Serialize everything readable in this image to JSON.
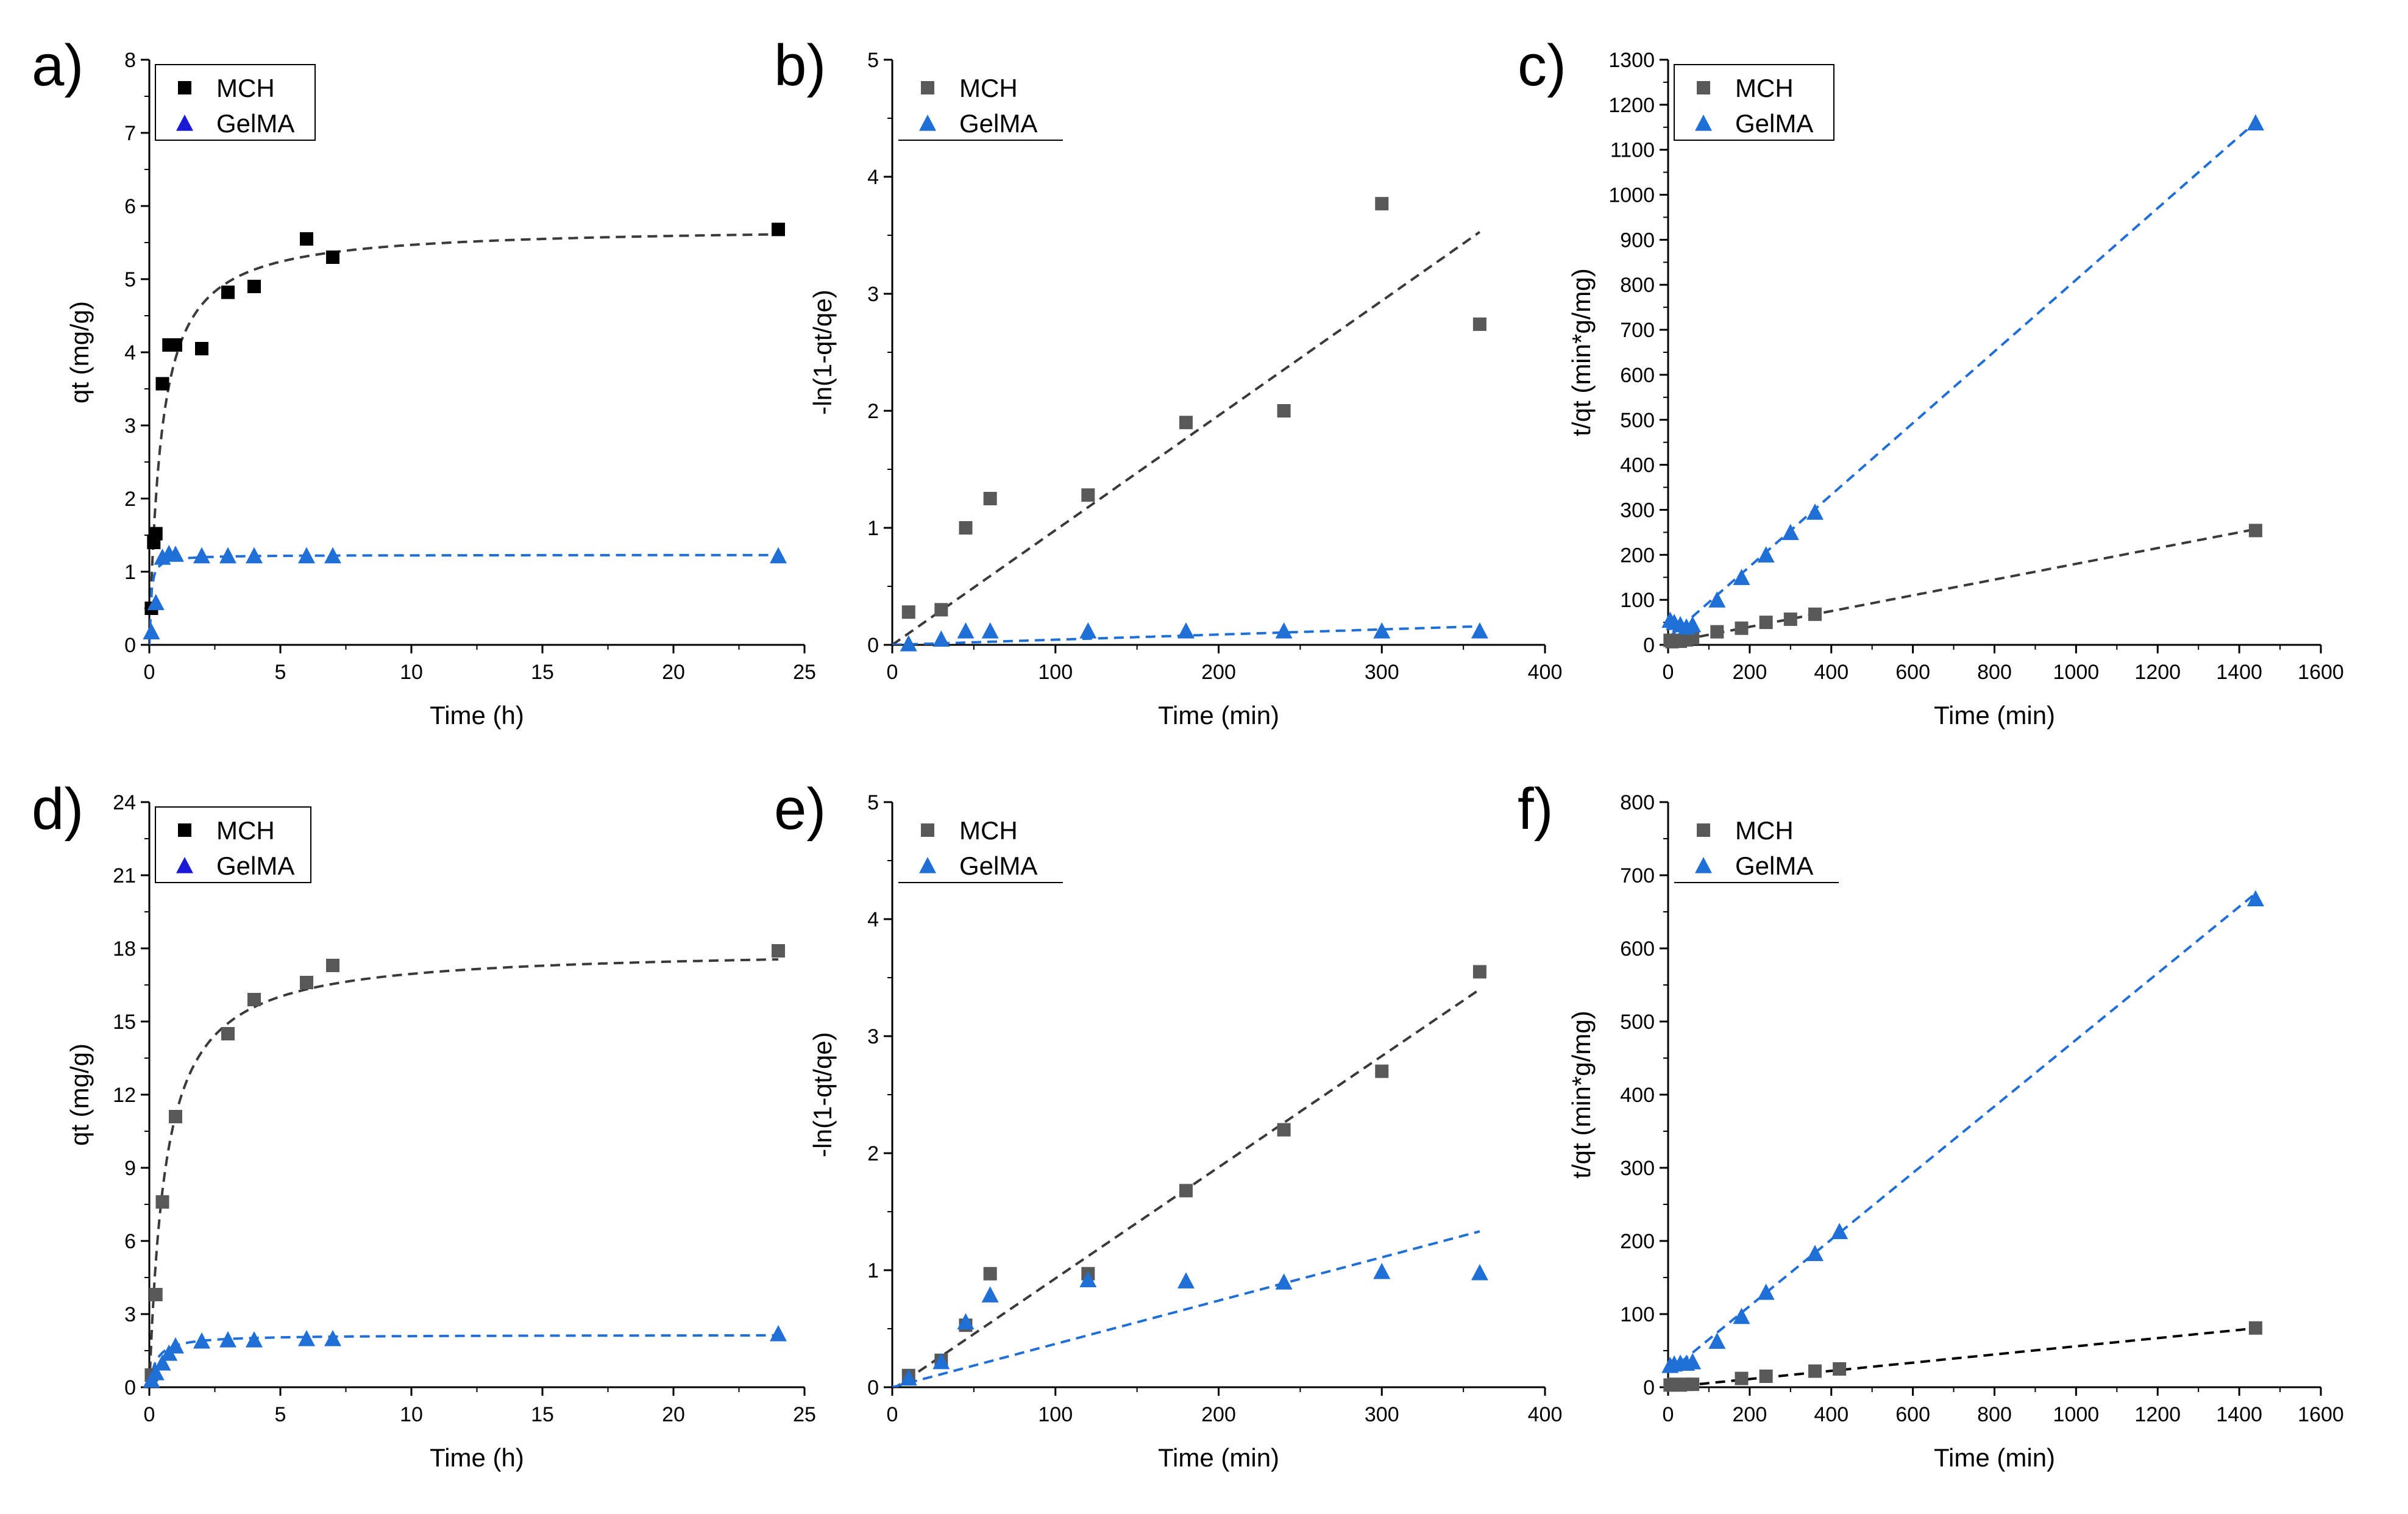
{
  "figure_title": "",
  "colors": {
    "mch_panel_ad": "#000000",
    "mch_panel_other": "#595959",
    "gelma_marker": "#1f6fd6",
    "gelma_marker_ad_legend": "#1a1ad6",
    "mch_fit": "#3a3a3a",
    "gelma_fit": "#1f6fd6",
    "axis": "#000000"
  },
  "chart_data": [
    {
      "panel": "a)",
      "type": "scatter",
      "xlabel": "Time (h)",
      "ylabel": "qt (mg/g)",
      "xlim": [
        0,
        25
      ],
      "ylim": [
        0,
        8
      ],
      "xticks": [
        0,
        5,
        10,
        15,
        20,
        25
      ],
      "yticks": [
        0,
        1,
        2,
        3,
        4,
        5,
        6,
        7,
        8
      ],
      "legend": "top-left",
      "series": [
        {
          "name": "MCH",
          "marker": "square",
          "color": "#000000",
          "x": [
            0.08,
            0.17,
            0.25,
            0.5,
            0.75,
            1,
            2,
            3,
            4,
            6,
            7,
            24
          ],
          "y": [
            0.5,
            1.4,
            1.52,
            3.57,
            4.1,
            4.1,
            4.05,
            4.82,
            4.9,
            5.55,
            5.3,
            5.68
          ],
          "fit": {
            "model": "pso",
            "qe": 5.72,
            "k": 0.38,
            "x0": 0,
            "x1": 24,
            "color": "#3a3a3a"
          }
        },
        {
          "name": "GelMA",
          "marker": "triangle",
          "color": "#1f6fd6",
          "legend_color": "#1a1ad6",
          "x": [
            0.08,
            0.25,
            0.5,
            0.75,
            1,
            2,
            3,
            4,
            6,
            7,
            24
          ],
          "y": [
            0.18,
            0.58,
            1.2,
            1.25,
            1.24,
            1.22,
            1.22,
            1.22,
            1.22,
            1.22,
            1.22
          ],
          "fit": {
            "model": "pso",
            "qe": 1.23,
            "k": 15,
            "x0": 0,
            "x1": 24,
            "color": "#1f6fd6"
          }
        }
      ]
    },
    {
      "panel": "b)",
      "type": "scatter",
      "xlabel": "Time (min)",
      "ylabel": "-ln(1-qt/qe)",
      "xlim": [
        0,
        400
      ],
      "ylim": [
        0,
        5
      ],
      "xticks": [
        0,
        100,
        200,
        300,
        400
      ],
      "yticks": [
        0,
        1,
        2,
        3,
        4,
        5
      ],
      "legend": "top-left",
      "series": [
        {
          "name": "MCH",
          "marker": "square",
          "color": "#595959",
          "x": [
            10,
            30,
            45,
            60,
            120,
            180,
            240,
            300,
            360
          ],
          "y": [
            0.28,
            0.3,
            1.0,
            1.25,
            1.28,
            1.9,
            2.0,
            3.77,
            2.74
          ],
          "fit": {
            "model": "linear",
            "a": 0.0,
            "b": 0.0098,
            "x0": 0,
            "x1": 360,
            "color": "#3a3a3a"
          }
        },
        {
          "name": "GelMA",
          "marker": "triangle",
          "color": "#1f6fd6",
          "x": [
            10,
            30,
            45,
            60,
            120,
            180,
            240,
            300,
            360
          ],
          "y": [
            0.01,
            0.05,
            0.12,
            0.12,
            0.12,
            0.12,
            0.12,
            0.12,
            0.12
          ],
          "fit": {
            "model": "linear",
            "a": 0.0,
            "b": 0.00044,
            "x0": 0,
            "x1": 360,
            "color": "#1f6fd6"
          }
        }
      ]
    },
    {
      "panel": "c)",
      "type": "scatter",
      "xlabel": "Time (min)",
      "ylabel": "t/qt (min*g/mg)",
      "xlim": [
        0,
        1600
      ],
      "ylim": [
        0,
        1300
      ],
      "xticks": [
        0,
        200,
        400,
        600,
        800,
        1000,
        1200,
        1400,
        1600
      ],
      "yticks": [
        0,
        100,
        200,
        300,
        400,
        500,
        600,
        700,
        800,
        900,
        1000,
        1100,
        1200,
        1300
      ],
      "legend": "top-left",
      "series": [
        {
          "name": "MCH",
          "marker": "square",
          "color": "#595959",
          "x": [
            5,
            10,
            15,
            30,
            45,
            60,
            120,
            180,
            240,
            300,
            360,
            1440
          ],
          "y": [
            10,
            7,
            10,
            8,
            11,
            15,
            29,
            37,
            50,
            57,
            68,
            254
          ],
          "fit": {
            "model": "linear",
            "a": 5,
            "b": 0.175,
            "x0": 0,
            "x1": 1440,
            "color": "#3a3a3a"
          }
        },
        {
          "name": "GelMA",
          "marker": "triangle",
          "color": "#1f6fd6",
          "x": [
            5,
            15,
            30,
            45,
            60,
            120,
            180,
            240,
            300,
            360,
            1440
          ],
          "y": [
            55,
            50,
            45,
            40,
            45,
            100,
            150,
            200,
            250,
            295,
            1160
          ],
          "fit": {
            "model": "linear",
            "a": 15,
            "b": 0.796,
            "x0": 0,
            "x1": 1440,
            "color": "#1f6fd6"
          }
        }
      ]
    },
    {
      "panel": "d)",
      "type": "scatter",
      "xlabel": "Time (h)",
      "ylabel": "qt (mg/g)",
      "xlim": [
        0,
        25
      ],
      "ylim": [
        0,
        24
      ],
      "xticks": [
        0,
        5,
        10,
        15,
        20,
        25
      ],
      "yticks": [
        0,
        3,
        6,
        9,
        12,
        15,
        18,
        21,
        24
      ],
      "legend": "top-left",
      "series": [
        {
          "name": "MCH",
          "marker": "square",
          "color": "#595959",
          "legend_color": "#000000",
          "x": [
            0.08,
            0.25,
            0.5,
            1,
            3,
            4,
            6,
            7,
            24
          ],
          "y": [
            0.5,
            3.8,
            7.6,
            11.1,
            14.5,
            15.9,
            16.6,
            17.3,
            17.9
          ],
          "fit": {
            "model": "pso",
            "qe": 18.0,
            "k": 0.09,
            "x0": 0,
            "x1": 24,
            "color": "#3a3a3a"
          }
        },
        {
          "name": "GelMA",
          "marker": "triangle",
          "color": "#1f6fd6",
          "legend_color": "#1a1ad6",
          "x": [
            0.08,
            0.25,
            0.5,
            0.75,
            1,
            2,
            3,
            4,
            6,
            7,
            24
          ],
          "y": [
            0.3,
            0.6,
            1.0,
            1.4,
            1.7,
            1.9,
            1.95,
            1.95,
            2.0,
            2.0,
            2.2
          ],
          "fit": {
            "model": "pso",
            "qe": 2.15,
            "k": 1.8,
            "x0": 0,
            "x1": 24,
            "color": "#1f6fd6"
          }
        }
      ]
    },
    {
      "panel": "e)",
      "type": "scatter",
      "xlabel": "Time (min)",
      "ylabel": "-ln(1-qt/qe)",
      "xlim": [
        0,
        400
      ],
      "ylim": [
        0,
        5
      ],
      "xticks": [
        0,
        100,
        200,
        300,
        400
      ],
      "yticks": [
        0,
        1,
        2,
        3,
        4,
        5
      ],
      "legend": "top-left",
      "series": [
        {
          "name": "MCH",
          "marker": "square",
          "color": "#595959",
          "x": [
            10,
            30,
            45,
            60,
            120,
            180,
            240,
            300,
            360
          ],
          "y": [
            0.1,
            0.23,
            0.53,
            0.97,
            0.97,
            1.68,
            2.2,
            2.7,
            3.55
          ],
          "fit": {
            "model": "linear",
            "a": -0.02,
            "b": 0.0095,
            "x0": 0,
            "x1": 360,
            "color": "#3a3a3a"
          }
        },
        {
          "name": "GelMA",
          "marker": "triangle",
          "color": "#1f6fd6",
          "x": [
            10,
            30,
            45,
            60,
            120,
            180,
            240,
            300,
            360
          ],
          "y": [
            0.08,
            0.22,
            0.56,
            0.79,
            0.92,
            0.91,
            0.9,
            0.99,
            0.98
          ],
          "fit": {
            "model": "linear",
            "a": 0.0,
            "b": 0.0037,
            "x0": 0,
            "x1": 360,
            "color": "#1f6fd6"
          }
        }
      ]
    },
    {
      "panel": "f)",
      "type": "scatter",
      "xlabel": "Time (min)",
      "ylabel": "t/qt (min*g/mg)",
      "xlim": [
        0,
        1600
      ],
      "ylim": [
        0,
        800
      ],
      "xticks": [
        0,
        200,
        400,
        600,
        800,
        1000,
        1200,
        1400,
        1600
      ],
      "yticks": [
        0,
        100,
        200,
        300,
        400,
        500,
        600,
        700,
        800
      ],
      "legend": "top-left",
      "series": [
        {
          "name": "MCH",
          "marker": "square",
          "color": "#595959",
          "x": [
            5,
            15,
            30,
            45,
            60,
            180,
            240,
            360,
            420,
            1440
          ],
          "y": [
            3,
            4,
            3,
            4,
            4,
            12,
            15,
            22,
            25,
            81
          ],
          "fit": {
            "model": "linear",
            "a": 0,
            "b": 0.056,
            "x0": 0,
            "x1": 1440,
            "color": "#000000"
          }
        },
        {
          "name": "GelMA",
          "marker": "triangle",
          "color": "#1f6fd6",
          "x": [
            5,
            15,
            30,
            45,
            60,
            120,
            180,
            240,
            360,
            420,
            1440
          ],
          "y": [
            30,
            32,
            33,
            33,
            35,
            63,
            97,
            130,
            183,
            213,
            668
          ],
          "fit": {
            "model": "linear",
            "a": 20,
            "b": 0.455,
            "x0": 0,
            "x1": 1440,
            "color": "#1f6fd6"
          }
        }
      ]
    }
  ]
}
